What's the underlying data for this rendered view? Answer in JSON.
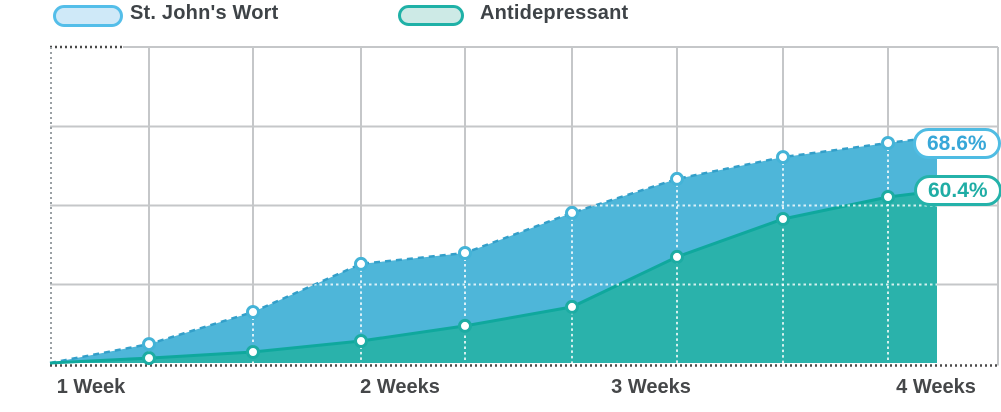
{
  "legend": {
    "items": [
      {
        "label": "St. John's Wort",
        "swatch_fill": "#cfe9f8",
        "swatch_border": "#54bee9"
      },
      {
        "label": "Antidepressant",
        "swatch_fill": "#cdeae6",
        "swatch_border": "#1fb1a7"
      }
    ]
  },
  "chart_data": {
    "type": "area",
    "title": "",
    "x_tick_labels": [
      "1 Week",
      "2 Weeks",
      "3 Weeks",
      "4 Weeks"
    ],
    "x_range_weeks": [
      1,
      4
    ],
    "y_unit": "percent",
    "ylim": [
      0,
      100
    ],
    "grid": true,
    "legend_position": "top-left",
    "series": [
      {
        "name": "St. John's Wort",
        "line_style": "dashed",
        "fill_color": "#4EB6D9",
        "line_color": "#339FC9",
        "dot_stroke": "#44B3D7",
        "values": [
          5.9,
          15.9,
          30.9,
          34.3,
          46.8,
          57.4,
          64.2,
          68.6
        ],
        "edge_value": 70.5,
        "end_label": "68.6%",
        "end_label_color": "#37a7d8",
        "end_pill_border": "#4fbce3"
      },
      {
        "name": "Antidepressant",
        "line_style": "solid",
        "fill_color": "#2AB2AB",
        "line_color": "#0FA89D",
        "dot_stroke": "#1CACA3",
        "values": [
          1.8,
          4.0,
          8.0,
          13.5,
          20.4,
          38.6,
          52.4,
          60.4
        ],
        "edge_value": 62.6,
        "end_label": "60.4%",
        "end_label_color": "#1fada5",
        "end_pill_border": "#24b2aa"
      }
    ]
  },
  "colors": {
    "grid_line": "#c5c7c9",
    "axis_dotted": "#4a4a4a",
    "left_edge_dotted": "#9aa0a4",
    "axis_label_text": "#454749",
    "legend_text": "#3e4347",
    "background": "#ffffff"
  }
}
